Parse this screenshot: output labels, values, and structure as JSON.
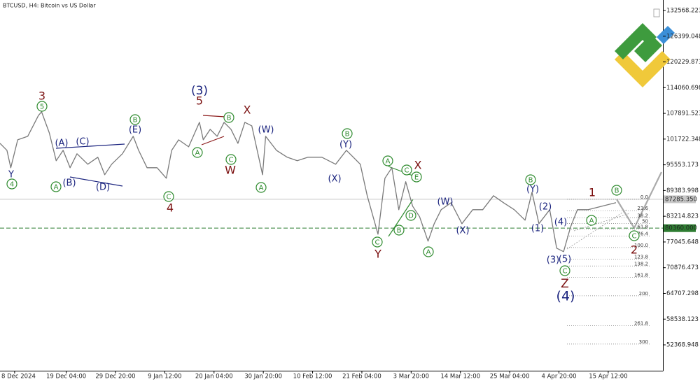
{
  "chart_data": {
    "type": "line",
    "title": "BTCUSD, H4:  Bitcoin vs US Dollar",
    "color": "#7a7a7a",
    "x": [
      -19,
      -10,
      -5,
      4,
      17,
      31,
      35,
      45,
      54,
      63,
      72,
      81,
      95,
      108,
      117,
      126,
      140,
      154,
      161,
      172,
      185,
      197,
      204,
      213,
      226,
      240,
      245,
      254,
      263,
      272,
      281,
      290,
      299,
      308,
      322,
      326,
      340,
      354,
      367,
      381,
      399,
      417,
      431,
      449,
      458,
      472,
      481,
      490,
      499,
      508,
      517,
      526,
      537,
      545,
      554,
      567,
      581,
      595,
      608,
      622,
      635,
      649,
      663,
      672,
      681,
      695,
      704,
      713,
      722,
      731,
      745,
      763,
      781
    ],
    "values": [
      100714,
      99037,
      94847,
      101553,
      102391,
      107421,
      108259,
      103229,
      96523,
      99037,
      94847,
      98200,
      95685,
      97361,
      93170,
      95685,
      98200,
      102391,
      99037,
      94847,
      94847,
      92332,
      99037,
      101553,
      99876,
      105744,
      101553,
      104068,
      102391,
      105744,
      104068,
      100714,
      105744,
      104906,
      93170,
      102391,
      99037,
      97361,
      96523,
      97361,
      97361,
      95685,
      99037,
      95685,
      88141,
      78920,
      92332,
      94847,
      84788,
      91494,
      85627,
      83112,
      77245,
      81437,
      84788,
      86465,
      81437,
      84788,
      84788,
      88141,
      86465,
      84788,
      82274,
      88979,
      81437,
      84788,
      75566,
      74728,
      80596,
      84788,
      84788,
      85627,
      86465
    ],
    "xlim": [
      -19,
      842
    ],
    "xticks": [
      {
        "value": 0,
        "label": "8 Dec 2024"
      },
      {
        "value": 67,
        "label": "19 Dec 04:00"
      },
      {
        "value": 131,
        "label": "29 Dec 20:00"
      },
      {
        "value": 195,
        "label": "9 Jan 12:00"
      },
      {
        "value": 259,
        "label": "20 Jan 04:00"
      },
      {
        "value": 323,
        "label": "30 Jan 20:00"
      },
      {
        "value": 387,
        "label": "10 Feb 12:00"
      },
      {
        "value": 451,
        "label": "21 Feb 04:00"
      },
      {
        "value": 515,
        "label": "3 Mar 20:00"
      },
      {
        "value": 579,
        "label": "14 Mar 12:00"
      },
      {
        "value": 643,
        "label": "25 Mar 04:00"
      },
      {
        "value": 707,
        "label": "4 Apr 20:00"
      },
      {
        "value": 771,
        "label": "15 Apr 12:00"
      }
    ],
    "ylim": [
      46166,
      135083
    ],
    "yticks": [
      132568.223,
      126399.048,
      120229.873,
      114060.698,
      107891.523,
      101722.348,
      95553.173,
      89383.998,
      83214.823,
      77045.648,
      70876.473,
      64707.298,
      58538.123,
      52368.948
    ],
    "price_lines": [
      {
        "value": 87285.35,
        "label": "87285.350",
        "color": "#c8c8c8"
      },
      {
        "value": 80360,
        "label": "80360.000",
        "color": "#2e7d32"
      }
    ],
    "fib_levels": [
      {
        "value": 0,
        "label": "0.0"
      },
      23.6,
      38.2,
      50,
      61.8,
      76.4,
      {
        "value": 100,
        "label": "100.0"
      },
      123.8,
      138.2,
      161.8,
      200,
      261.8,
      300
    ],
    "annotations": [
      {
        "text": "Y",
        "color": "#1a237e",
        "circled": false
      },
      {
        "text": "4",
        "color": "#2e8b2e",
        "circled": true
      },
      {
        "text": "3",
        "color": "#7b1010",
        "circled": false
      },
      {
        "text": "5",
        "color": "#2e8b2e",
        "circled": true
      },
      {
        "text": "(A)",
        "color": "#1a237e",
        "circled": false
      },
      {
        "text": "(C)",
        "color": "#1a237e",
        "circled": false
      },
      {
        "text": "A",
        "color": "#2e8b2e",
        "circled": true
      },
      {
        "text": "(B)",
        "color": "#1a237e",
        "circled": false
      },
      {
        "text": "(D)",
        "color": "#1a237e",
        "circled": false
      },
      {
        "text": "B",
        "color": "#2e8b2e",
        "circled": true
      },
      {
        "text": "(E)",
        "color": "#1a237e",
        "circled": false
      },
      {
        "text": "C",
        "color": "#2e8b2e",
        "circled": true
      },
      {
        "text": "4",
        "color": "#7b1010",
        "circled": false
      },
      {
        "text": "(3)",
        "color": "#1a237e",
        "circled": false
      },
      {
        "text": "5",
        "color": "#7b1010",
        "circled": false
      },
      {
        "text": "A",
        "color": "#2e8b2e",
        "circled": true
      },
      {
        "text": "B",
        "color": "#2e8b2e",
        "circled": true
      },
      {
        "text": "C",
        "color": "#2e8b2e",
        "circled": true
      },
      {
        "text": "W",
        "color": "#7b1010",
        "circled": false
      },
      {
        "text": "X",
        "color": "#7b1010",
        "circled": false
      },
      {
        "text": "(W)",
        "color": "#1a237e",
        "circled": false
      },
      {
        "text": "A",
        "color": "#2e8b2e",
        "circled": true
      },
      {
        "text": "B",
        "color": "#2e8b2e",
        "circled": true
      },
      {
        "text": "(Y)",
        "color": "#1a237e",
        "circled": false
      },
      {
        "text": "(X)",
        "color": "#1a237e",
        "circled": false
      },
      {
        "text": "A",
        "color": "#2e8b2e",
        "circled": true
      },
      {
        "text": "X",
        "color": "#7b1010",
        "circled": false
      },
      {
        "text": "C",
        "color": "#2e8b2e",
        "circled": true
      },
      {
        "text": "E",
        "color": "#2e8b2e",
        "circled": true
      },
      {
        "text": "D",
        "color": "#2e8b2e",
        "circled": true
      },
      {
        "text": "B",
        "color": "#2e8b2e",
        "circled": true
      },
      {
        "text": "C",
        "color": "#2e8b2e",
        "circled": true
      },
      {
        "text": "Y",
        "color": "#7b1010",
        "circled": false
      },
      {
        "text": "A",
        "color": "#2e8b2e",
        "circled": true
      },
      {
        "text": "(W)",
        "color": "#1a237e",
        "circled": false
      },
      {
        "text": "(X)",
        "color": "#1a237e",
        "circled": false
      },
      {
        "text": "B",
        "color": "#2e8b2e",
        "circled": true
      },
      {
        "text": "(Y)",
        "color": "#1a237e",
        "circled": false
      },
      {
        "text": "(2)",
        "color": "#1a237e",
        "circled": false
      },
      {
        "text": "(1)",
        "color": "#1a237e",
        "circled": false
      },
      {
        "text": "(4)",
        "color": "#1a237e",
        "circled": false
      },
      {
        "text": "(3)",
        "color": "#1a237e",
        "circled": false
      },
      {
        "text": "(5)",
        "color": "#1a237e",
        "circled": false
      },
      {
        "text": "C",
        "color": "#2e8b2e",
        "circled": true
      },
      {
        "text": "Z",
        "color": "#7b1010",
        "circled": false
      },
      {
        "text": "(4)",
        "color": "#1a237e",
        "circled": false
      },
      {
        "text": "1",
        "color": "#7b1010",
        "circled": false
      },
      {
        "text": "B",
        "color": "#2e8b2e",
        "circled": true
      },
      {
        "text": "A",
        "color": "#2e8b2e",
        "circled": true
      },
      {
        "text": "C",
        "color": "#2e8b2e",
        "circled": true
      },
      {
        "text": "2",
        "color": "#7b1010",
        "circled": false
      }
    ]
  }
}
